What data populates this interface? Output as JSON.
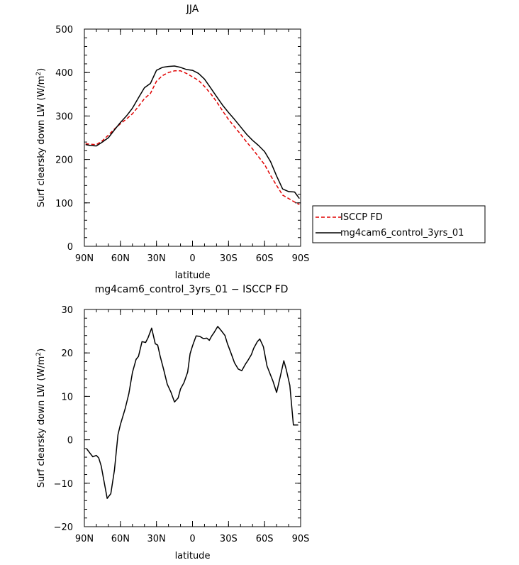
{
  "chart_data": [
    {
      "type": "line",
      "title": "JJA",
      "xlabel": "latitude",
      "ylabel": "Surf clearsky down LW (W/m²)",
      "ylabel_main": "Surf clearsky down LW (W/m",
      "ylabel_sup": "2",
      "ylabel_close": ")",
      "xlim": [
        90,
        -90
      ],
      "ylim": [
        0,
        500
      ],
      "xticks": [
        90,
        60,
        30,
        0,
        -30,
        -60,
        -90
      ],
      "xtick_labels": [
        "90N",
        "60N",
        "30N",
        "0",
        "30S",
        "60S",
        "90S"
      ],
      "yticks": [
        0,
        100,
        200,
        300,
        400,
        500
      ],
      "ytick_labels": [
        "0",
        "100",
        "200",
        "300",
        "400",
        "500"
      ],
      "legend": {
        "placement": "right",
        "entries": [
          "ISCCP FD",
          "mg4cam6_control_3yrs_01"
        ]
      },
      "series": [
        {
          "name": "ISCCP FD",
          "color": "#e00000",
          "dash": true,
          "x": [
            89,
            85,
            80,
            75,
            70,
            65,
            60,
            55,
            50,
            45,
            40,
            35,
            30,
            25,
            20,
            15,
            10,
            5,
            0,
            -5,
            -10,
            -15,
            -20,
            -25,
            -30,
            -35,
            -40,
            -45,
            -50,
            -55,
            -60,
            -65,
            -70,
            -75,
            -80,
            -85,
            -89
          ],
          "values": [
            236,
            235,
            234,
            243,
            256,
            270,
            282,
            293,
            305,
            322,
            340,
            352,
            380,
            393,
            400,
            404,
            404,
            398,
            390,
            382,
            368,
            352,
            333,
            312,
            292,
            275,
            258,
            240,
            224,
            206,
            188,
            163,
            140,
            118,
            110,
            102,
            96
          ]
        },
        {
          "name": "mg4cam6_control_3yrs_01",
          "color": "#000000",
          "dash": false,
          "x": [
            89,
            85,
            80,
            75,
            70,
            65,
            60,
            55,
            50,
            45,
            40,
            35,
            30,
            25,
            20,
            15,
            10,
            5,
            0,
            -5,
            -10,
            -15,
            -20,
            -25,
            -30,
            -35,
            -40,
            -45,
            -50,
            -55,
            -60,
            -65,
            -70,
            -75,
            -80,
            -85,
            -89
          ],
          "values": [
            234,
            232,
            231,
            240,
            250,
            268,
            285,
            300,
            318,
            342,
            365,
            375,
            405,
            412,
            414,
            415,
            412,
            407,
            405,
            398,
            385,
            365,
            345,
            325,
            308,
            292,
            275,
            258,
            244,
            232,
            218,
            195,
            162,
            132,
            126,
            125,
            110
          ]
        }
      ]
    },
    {
      "type": "line",
      "title": "mg4cam6_control_3yrs_01 − ISCCP FD",
      "xlabel": "latitude",
      "ylabel": "Surf clearsky down LW (W/m²)",
      "ylabel_main": "Surf clearsky down LW (W/m",
      "ylabel_sup": "2",
      "ylabel_close": ")",
      "xlim": [
        90,
        -90
      ],
      "ylim": [
        -20,
        30
      ],
      "xticks": [
        90,
        60,
        30,
        0,
        -30,
        -60,
        -90
      ],
      "xtick_labels": [
        "90N",
        "60N",
        "30N",
        "0",
        "30S",
        "60S",
        "90S"
      ],
      "yticks": [
        -20,
        -10,
        0,
        10,
        20,
        30
      ],
      "ytick_labels": [
        "−20",
        "−10",
        "0",
        "10",
        "20",
        "30"
      ],
      "series": [
        {
          "color": "#000000",
          "dash": false,
          "x": [
            88,
            85,
            83,
            80,
            78,
            76,
            74,
            71,
            68,
            65,
            62,
            60,
            56,
            53,
            50,
            47,
            45,
            42,
            39,
            37,
            34,
            31,
            29,
            27,
            24,
            21,
            18,
            15,
            12,
            10,
            7,
            4,
            2,
            0,
            -3,
            -6,
            -9,
            -12,
            -14,
            -16,
            -18,
            -21,
            -24,
            -27,
            -29,
            -32,
            -35,
            -38,
            -41,
            -44,
            -46,
            -49,
            -51,
            -54,
            -56,
            -59,
            -62,
            -64,
            -67,
            -70,
            -73,
            -76,
            -78,
            -81,
            -84,
            -86,
            -88
          ],
          "values": [
            -2.1,
            -3.2,
            -3.9,
            -3.6,
            -4.2,
            -6.0,
            -9.0,
            -13.5,
            -12.4,
            -7.0,
            1.2,
            3.5,
            7.2,
            10.6,
            15.5,
            18.5,
            19.2,
            22.6,
            22.4,
            23.5,
            25.7,
            22.1,
            21.8,
            19.3,
            16.2,
            12.8,
            11.0,
            8.7,
            9.6,
            11.7,
            13.2,
            15.6,
            19.8,
            21.6,
            23.9,
            23.8,
            23.3,
            23.4,
            22.9,
            23.9,
            24.7,
            26.1,
            25.1,
            24.0,
            22.2,
            20.0,
            17.7,
            16.3,
            15.9,
            17.4,
            18.2,
            19.6,
            21.1,
            22.6,
            23.2,
            21.4,
            17.0,
            15.6,
            13.5,
            10.9,
            14.5,
            18.2,
            16.2,
            12.5,
            3.4,
            3.4,
            3.4
          ]
        }
      ]
    }
  ]
}
